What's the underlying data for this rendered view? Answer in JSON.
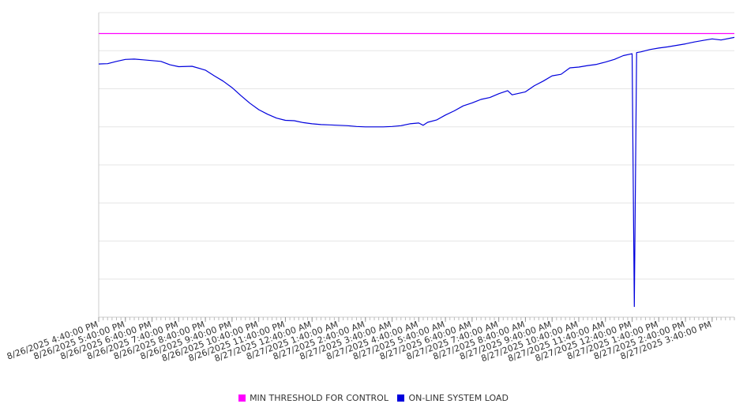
{
  "chart_data": {
    "type": "line",
    "title": "",
    "xlabel": "",
    "ylabel": "",
    "x_start": "8/26/2025 4:40:00 PM",
    "x_end": "8/27/2025 4:30:00 PM",
    "x_tick_labels": [
      "8/26/2025 4:40:00 PM",
      "8/26/2025 5:40:00 PM",
      "8/26/2025 6:40:00 PM",
      "8/26/2025 7:40:00 PM",
      "8/26/2025 8:40:00 PM",
      "8/26/2025 9:40:00 PM",
      "8/26/2025 10:40:00 PM",
      "8/26/2025 11:40:00 PM",
      "8/27/2025 12:40:00 AM",
      "8/27/2025 1:40:00 AM",
      "8/27/2025 2:40:00 AM",
      "8/27/2025 3:40:00 AM",
      "8/27/2025 4:40:00 AM",
      "8/27/2025 5:40:00 AM",
      "8/27/2025 6:40:00 AM",
      "8/27/2025 7:40:00 AM",
      "8/27/2025 8:40:00 AM",
      "8/27/2025 9:40:00 AM",
      "8/27/2025 10:40:00 AM",
      "8/27/2025 11:40:00 AM",
      "8/27/2025 12:40:00 PM",
      "8/27/2025 1:40:00 PM",
      "8/27/2025 2:40:00 PM",
      "8/27/2025 3:40:00 PM"
    ],
    "y_axis_labels_shown": false,
    "ylim": [
      0,
      8
    ],
    "grid": true,
    "legend_placement": "bottom",
    "series": [
      {
        "name": "MIN THRESHOLD FOR CONTROL",
        "color": "#ff00ff",
        "points": [
          {
            "t": "8/26/2025 4:40:00 PM",
            "y": 7.45
          },
          {
            "t": "8/27/2025 4:30:00 PM",
            "y": 7.45
          }
        ]
      },
      {
        "name": "ON-LINE SYSTEM LOAD",
        "color": "#0000dd",
        "points": [
          {
            "t": "8/26/2025 4:40:00 PM",
            "y": 6.65
          },
          {
            "t": "8/26/2025 5:00:00 PM",
            "y": 6.66
          },
          {
            "t": "8/26/2025 5:20:00 PM",
            "y": 6.72
          },
          {
            "t": "8/26/2025 5:40:00 PM",
            "y": 6.77
          },
          {
            "t": "8/26/2025 6:00:00 PM",
            "y": 6.78
          },
          {
            "t": "8/26/2025 6:20:00 PM",
            "y": 6.76
          },
          {
            "t": "8/26/2025 6:40:00 PM",
            "y": 6.74
          },
          {
            "t": "8/26/2025 7:00:00 PM",
            "y": 6.72
          },
          {
            "t": "8/26/2025 7:20:00 PM",
            "y": 6.63
          },
          {
            "t": "8/26/2025 7:40:00 PM",
            "y": 6.58
          },
          {
            "t": "8/26/2025 8:10:00 PM",
            "y": 6.59
          },
          {
            "t": "8/26/2025 8:40:00 PM",
            "y": 6.49
          },
          {
            "t": "8/26/2025 9:00:00 PM",
            "y": 6.34
          },
          {
            "t": "8/26/2025 9:20:00 PM",
            "y": 6.2
          },
          {
            "t": "8/26/2025 9:40:00 PM",
            "y": 6.03
          },
          {
            "t": "8/26/2025 10:00:00 PM",
            "y": 5.82
          },
          {
            "t": "8/26/2025 10:20:00 PM",
            "y": 5.62
          },
          {
            "t": "8/26/2025 10:40:00 PM",
            "y": 5.45
          },
          {
            "t": "8/26/2025 11:00:00 PM",
            "y": 5.33
          },
          {
            "t": "8/26/2025 11:20:00 PM",
            "y": 5.23
          },
          {
            "t": "8/26/2025 11:40:00 PM",
            "y": 5.17
          },
          {
            "t": "8/27/2025 12:00:00 AM",
            "y": 5.16
          },
          {
            "t": "8/27/2025 12:20:00 AM",
            "y": 5.11
          },
          {
            "t": "8/27/2025 12:40:00 AM",
            "y": 5.08
          },
          {
            "t": "8/27/2025 1:00:00 AM",
            "y": 5.06
          },
          {
            "t": "8/27/2025 1:20:00 AM",
            "y": 5.05
          },
          {
            "t": "8/27/2025 1:40:00 AM",
            "y": 5.04
          },
          {
            "t": "8/27/2025 2:00:00 AM",
            "y": 5.03
          },
          {
            "t": "8/27/2025 2:20:00 AM",
            "y": 5.01
          },
          {
            "t": "8/27/2025 2:40:00 AM",
            "y": 5.0
          },
          {
            "t": "8/27/2025 3:00:00 AM",
            "y": 5.0
          },
          {
            "t": "8/27/2025 3:20:00 AM",
            "y": 5.0
          },
          {
            "t": "8/27/2025 3:40:00 AM",
            "y": 5.01
          },
          {
            "t": "8/27/2025 4:00:00 AM",
            "y": 5.03
          },
          {
            "t": "8/27/2025 4:20:00 AM",
            "y": 5.08
          },
          {
            "t": "8/27/2025 4:40:00 AM",
            "y": 5.1
          },
          {
            "t": "8/27/2025 4:50:00 AM",
            "y": 5.04
          },
          {
            "t": "8/27/2025 5:00:00 AM",
            "y": 5.12
          },
          {
            "t": "8/27/2025 5:20:00 AM",
            "y": 5.18
          },
          {
            "t": "8/27/2025 5:40:00 AM",
            "y": 5.31
          },
          {
            "t": "8/27/2025 6:00:00 AM",
            "y": 5.42
          },
          {
            "t": "8/27/2025 6:20:00 AM",
            "y": 5.55
          },
          {
            "t": "8/27/2025 6:40:00 AM",
            "y": 5.63
          },
          {
            "t": "8/27/2025 7:00:00 AM",
            "y": 5.72
          },
          {
            "t": "8/27/2025 7:20:00 AM",
            "y": 5.77
          },
          {
            "t": "8/27/2025 7:40:00 AM",
            "y": 5.87
          },
          {
            "t": "8/27/2025 8:00:00 AM",
            "y": 5.95
          },
          {
            "t": "8/27/2025 8:10:00 AM",
            "y": 5.84
          },
          {
            "t": "8/27/2025 8:40:00 AM",
            "y": 5.92
          },
          {
            "t": "8/27/2025 9:00:00 AM",
            "y": 6.08
          },
          {
            "t": "8/27/2025 9:20:00 AM",
            "y": 6.2
          },
          {
            "t": "8/27/2025 9:40:00 AM",
            "y": 6.34
          },
          {
            "t": "8/27/2025 10:00:00 AM",
            "y": 6.38
          },
          {
            "t": "8/27/2025 10:20:00 AM",
            "y": 6.55
          },
          {
            "t": "8/27/2025 10:40:00 AM",
            "y": 6.57
          },
          {
            "t": "8/27/2025 11:00:00 AM",
            "y": 6.61
          },
          {
            "t": "8/27/2025 11:20:00 AM",
            "y": 6.64
          },
          {
            "t": "8/27/2025 11:40:00 AM",
            "y": 6.7
          },
          {
            "t": "8/27/2025 12:00:00 PM",
            "y": 6.77
          },
          {
            "t": "8/27/2025 12:20:00 PM",
            "y": 6.87
          },
          {
            "t": "8/27/2025 12:40:00 PM",
            "y": 6.92
          },
          {
            "t": "8/27/2025 12:45:00 PM",
            "y": 0.28
          },
          {
            "t": "8/27/2025 12:50:00 PM",
            "y": 6.95
          },
          {
            "t": "8/27/2025 1:00:00 PM",
            "y": 6.97
          },
          {
            "t": "8/27/2025 1:20:00 PM",
            "y": 7.03
          },
          {
            "t": "8/27/2025 1:40:00 PM",
            "y": 7.07
          },
          {
            "t": "8/27/2025 2:00:00 PM",
            "y": 7.1
          },
          {
            "t": "8/27/2025 2:20:00 PM",
            "y": 7.14
          },
          {
            "t": "8/27/2025 2:40:00 PM",
            "y": 7.18
          },
          {
            "t": "8/27/2025 3:00:00 PM",
            "y": 7.23
          },
          {
            "t": "8/27/2025 3:20:00 PM",
            "y": 7.27
          },
          {
            "t": "8/27/2025 3:40:00 PM",
            "y": 7.31
          },
          {
            "t": "8/27/2025 4:00:00 PM",
            "y": 7.28
          },
          {
            "t": "8/27/2025 4:30:00 PM",
            "y": 7.35
          }
        ]
      }
    ]
  }
}
